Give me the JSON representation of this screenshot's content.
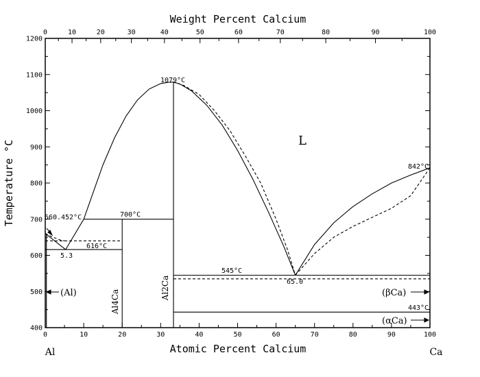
{
  "chart_data": {
    "type": "line",
    "title": "",
    "xlabel": "Atomic Percent Calcium",
    "x2label": "Weight Percent Calcium",
    "ylabel": "Temperature °C",
    "xlim": [
      0,
      100
    ],
    "ylim": [
      400,
      1200
    ],
    "x_ticks": [
      0,
      10,
      20,
      30,
      40,
      50,
      60,
      70,
      80,
      90,
      100
    ],
    "x2_ticks": [
      0,
      10,
      20,
      30,
      40,
      50,
      60,
      70,
      80,
      90,
      100
    ],
    "y_ticks": [
      400,
      500,
      600,
      700,
      800,
      900,
      1000,
      1100,
      1200
    ],
    "left_end_label": "Al",
    "right_end_label": "Ca",
    "region_labels": {
      "liquid": "L",
      "al": "(Al)",
      "beta_ca": "(βCa)",
      "alpha_ca": "(αCa)"
    },
    "phase_labels": {
      "al4ca": "Al4Ca",
      "al2ca": "Al2Ca"
    },
    "annotations": {
      "al_melting": "660.452°C",
      "eutectic_al": "616°C",
      "eutectic_al_comp": "5.3",
      "peritectic": "700°C",
      "al2ca_melting": "1079°C",
      "eutectic_ca": "545°C",
      "eutectic_ca_comp": "65.0",
      "ca_melting": "842°C",
      "ca_transition": "443°C"
    },
    "series": [
      {
        "style": "solid",
        "x": [
          0,
          5.3
        ],
        "y": [
          660.452,
          616
        ]
      },
      {
        "style": "solid",
        "x": [
          5.3,
          10
        ],
        "y": [
          616,
          700
        ]
      },
      {
        "style": "solid",
        "x": [
          10,
          12,
          15,
          18,
          21,
          24,
          27,
          30,
          32,
          33.33
        ],
        "y": [
          700,
          760,
          850,
          925,
          985,
          1030,
          1060,
          1075,
          1078.5,
          1079
        ]
      },
      {
        "style": "solid",
        "x": [
          33.33,
          35,
          38,
          42,
          46,
          50,
          54,
          58,
          62,
          65
        ],
        "y": [
          1079,
          1074,
          1055,
          1015,
          960,
          890,
          810,
          720,
          625,
          545
        ]
      },
      {
        "style": "solid",
        "x": [
          65,
          70,
          75,
          80,
          85,
          90,
          95,
          100
        ],
        "y": [
          545,
          630,
          690,
          735,
          770,
          800,
          822,
          842
        ]
      },
      {
        "style": "dashed",
        "x": [
          0,
          2,
          4,
          5
        ],
        "y": [
          660.452,
          650,
          642,
          640
        ]
      },
      {
        "style": "dashed",
        "x": [
          33.33,
          36,
          40,
          44,
          48,
          52,
          56,
          60,
          63,
          65
        ],
        "y": [
          1079,
          1070,
          1045,
          1000,
          945,
          875,
          800,
          700,
          615,
          545
        ]
      },
      {
        "style": "dashed",
        "x": [
          65,
          70,
          75,
          80,
          85,
          90,
          95,
          100
        ],
        "y": [
          545,
          605,
          650,
          680,
          705,
          730,
          765,
          842
        ]
      },
      {
        "style": "dashed",
        "x": [
          0,
          20
        ],
        "y": [
          640,
          640
        ]
      },
      {
        "style": "dashed",
        "x": [
          33.33,
          100
        ],
        "y": [
          535,
          535
        ]
      },
      {
        "style": "solid",
        "x": [
          0,
          20
        ],
        "y": [
          616,
          616
        ]
      },
      {
        "style": "solid",
        "x": [
          10,
          33.33
        ],
        "y": [
          700,
          700
        ]
      },
      {
        "style": "solid",
        "x": [
          33.33,
          100
        ],
        "y": [
          545,
          545
        ]
      },
      {
        "style": "solid",
        "x": [
          33.33,
          100
        ],
        "y": [
          443,
          443
        ]
      },
      {
        "style": "solid",
        "x": [
          0.3,
          0.3
        ],
        "y": [
          400,
          660
        ]
      },
      {
        "style": "solid",
        "x": [
          20,
          20
        ],
        "y": [
          400,
          700
        ]
      },
      {
        "style": "solid",
        "x": [
          33.33,
          33.33
        ],
        "y": [
          400,
          1079
        ]
      }
    ]
  }
}
